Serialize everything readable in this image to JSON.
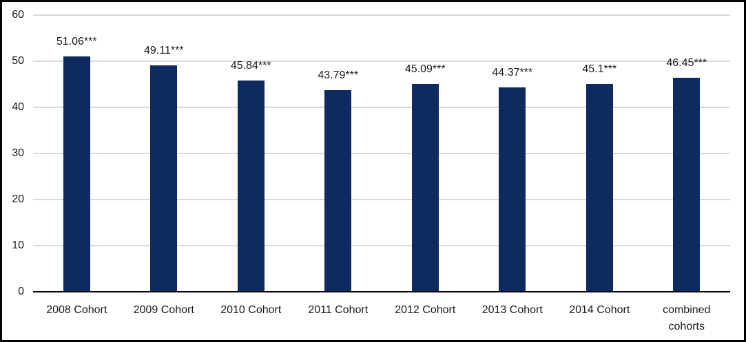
{
  "chart_data": {
    "type": "bar",
    "categories": [
      "2008 Cohort",
      "2009 Cohort",
      "2010 Cohort",
      "2011 Cohort",
      "2012 Cohort",
      "2013 Cohort",
      "2014 Cohort",
      "combined cohorts"
    ],
    "values": [
      51.06,
      49.11,
      45.84,
      43.79,
      45.09,
      44.37,
      45.1,
      46.45
    ],
    "data_labels": [
      "51.06***",
      "49.11***",
      "45.84***",
      "43.79***",
      "45.09***",
      "44.37***",
      "45.1***",
      "46.45***"
    ],
    "title": "",
    "xlabel": "",
    "ylabel": "",
    "ylim": [
      0,
      60
    ],
    "yticks": [
      0,
      10,
      20,
      30,
      40,
      50,
      60
    ],
    "grid": true,
    "legend": false,
    "colors": {
      "bar": "#0E2A5E",
      "gridline": "#D9D9D9",
      "axis_line": "#000000",
      "text": "#1a1a1a",
      "background": "#ffffff",
      "frame_border": "#000000"
    }
  }
}
